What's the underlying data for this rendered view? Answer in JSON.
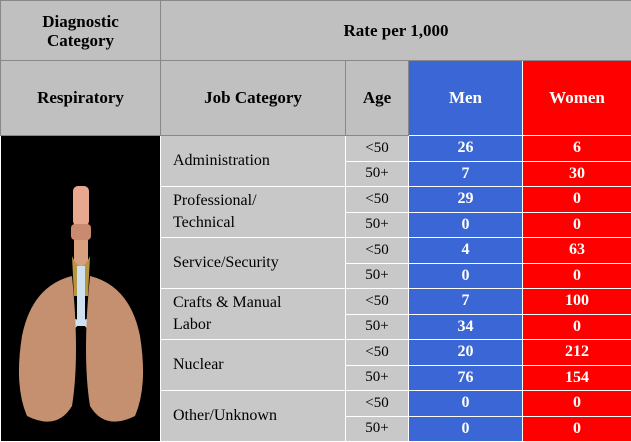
{
  "header": {
    "diagnostic_category": "Diagnostic Category",
    "rate": "Rate per 1,000",
    "respiratory": "Respiratory",
    "job_category": "Job Category",
    "age": "Age",
    "men": "Men",
    "women": "Women"
  },
  "table": {
    "groups": [
      {
        "job": "Administration",
        "rows": [
          {
            "age": "<50",
            "men": 26,
            "women": 6
          },
          {
            "age": "50+",
            "men": 7,
            "women": 30
          }
        ]
      },
      {
        "job": "Professional/ Technical",
        "rows": [
          {
            "age": "<50",
            "men": 29,
            "women": 0
          },
          {
            "age": "50+",
            "men": 0,
            "women": 0
          }
        ]
      },
      {
        "job": "Service/Security",
        "rows": [
          {
            "age": "<50",
            "men": 4,
            "women": 63
          },
          {
            "age": "50+",
            "men": 0,
            "women": 0
          }
        ]
      },
      {
        "job": "Crafts & Manual Labor",
        "rows": [
          {
            "age": "<50",
            "men": 7,
            "women": 100
          },
          {
            "age": "50+",
            "men": 34,
            "women": 0
          }
        ]
      },
      {
        "job": "Nuclear",
        "rows": [
          {
            "age": "<50",
            "men": 20,
            "women": 212
          },
          {
            "age": "50+",
            "men": 76,
            "women": 154
          }
        ]
      },
      {
        "job": "Other/Unknown",
        "rows": [
          {
            "age": "<50",
            "men": 0,
            "women": 0
          },
          {
            "age": "50+",
            "men": 0,
            "women": 0
          }
        ]
      }
    ]
  }
}
